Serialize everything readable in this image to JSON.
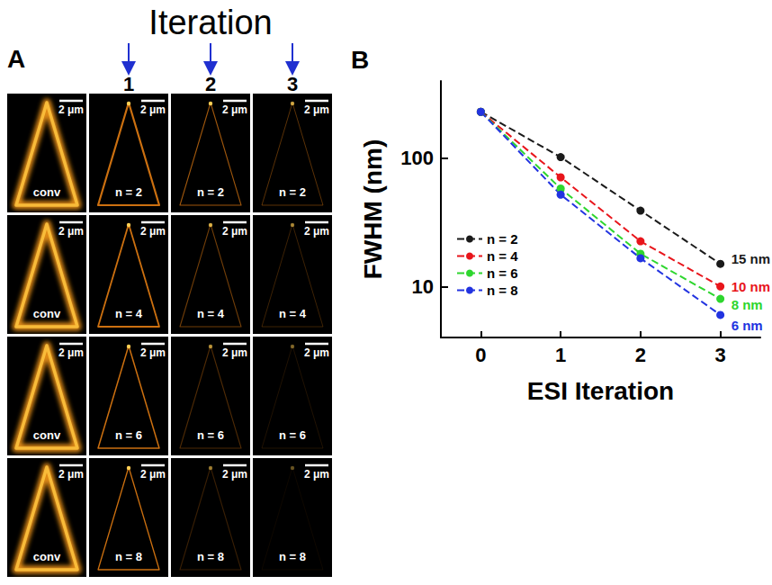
{
  "panel_a": {
    "letter": "A",
    "header": "Iteration",
    "column_labels": [
      "1",
      "2",
      "3"
    ],
    "scale_bar": "2 μm",
    "rows": [
      [
        "conv",
        "n = 2",
        "n = 2",
        "n = 2"
      ],
      [
        "conv",
        "n = 4",
        "n = 4",
        "n = 4"
      ],
      [
        "conv",
        "n = 6",
        "n = 6",
        "n = 6"
      ],
      [
        "conv",
        "n = 8",
        "n = 8",
        "n = 8"
      ]
    ]
  },
  "chart_data": {
    "panel_label": "B",
    "type": "line",
    "xlabel": "ESI Iteration",
    "ylabel": "FWHM (nm)",
    "x": [
      0,
      1,
      2,
      3
    ],
    "xlim": [
      -0.5,
      3.5
    ],
    "xticks": [
      0,
      1,
      2,
      3
    ],
    "ylim": [
      4,
      400
    ],
    "yticks": [
      10,
      100
    ],
    "log": "y",
    "grid": false,
    "legend": "lower left",
    "series": [
      {
        "name": "n = 2",
        "color": "#1a1a1a",
        "marker": "circle",
        "line_style": "dashed",
        "values": [
          230,
          102,
          39,
          15
        ],
        "end_label": "15 nm"
      },
      {
        "name": "n = 4",
        "color": "#e8151b",
        "marker": "circle",
        "line_style": "dashed",
        "values": [
          230,
          71,
          22.5,
          10
        ],
        "end_label": "10 nm"
      },
      {
        "name": "n = 6",
        "color": "#2ed62e",
        "marker": "circle",
        "line_style": "dashed",
        "values": [
          230,
          58,
          18,
          8
        ],
        "end_label": "8 nm"
      },
      {
        "name": "n = 8",
        "color": "#2233e0",
        "marker": "circle",
        "line_style": "dashed",
        "values": [
          230,
          52,
          16.6,
          6
        ],
        "end_label": "6 nm"
      }
    ]
  }
}
